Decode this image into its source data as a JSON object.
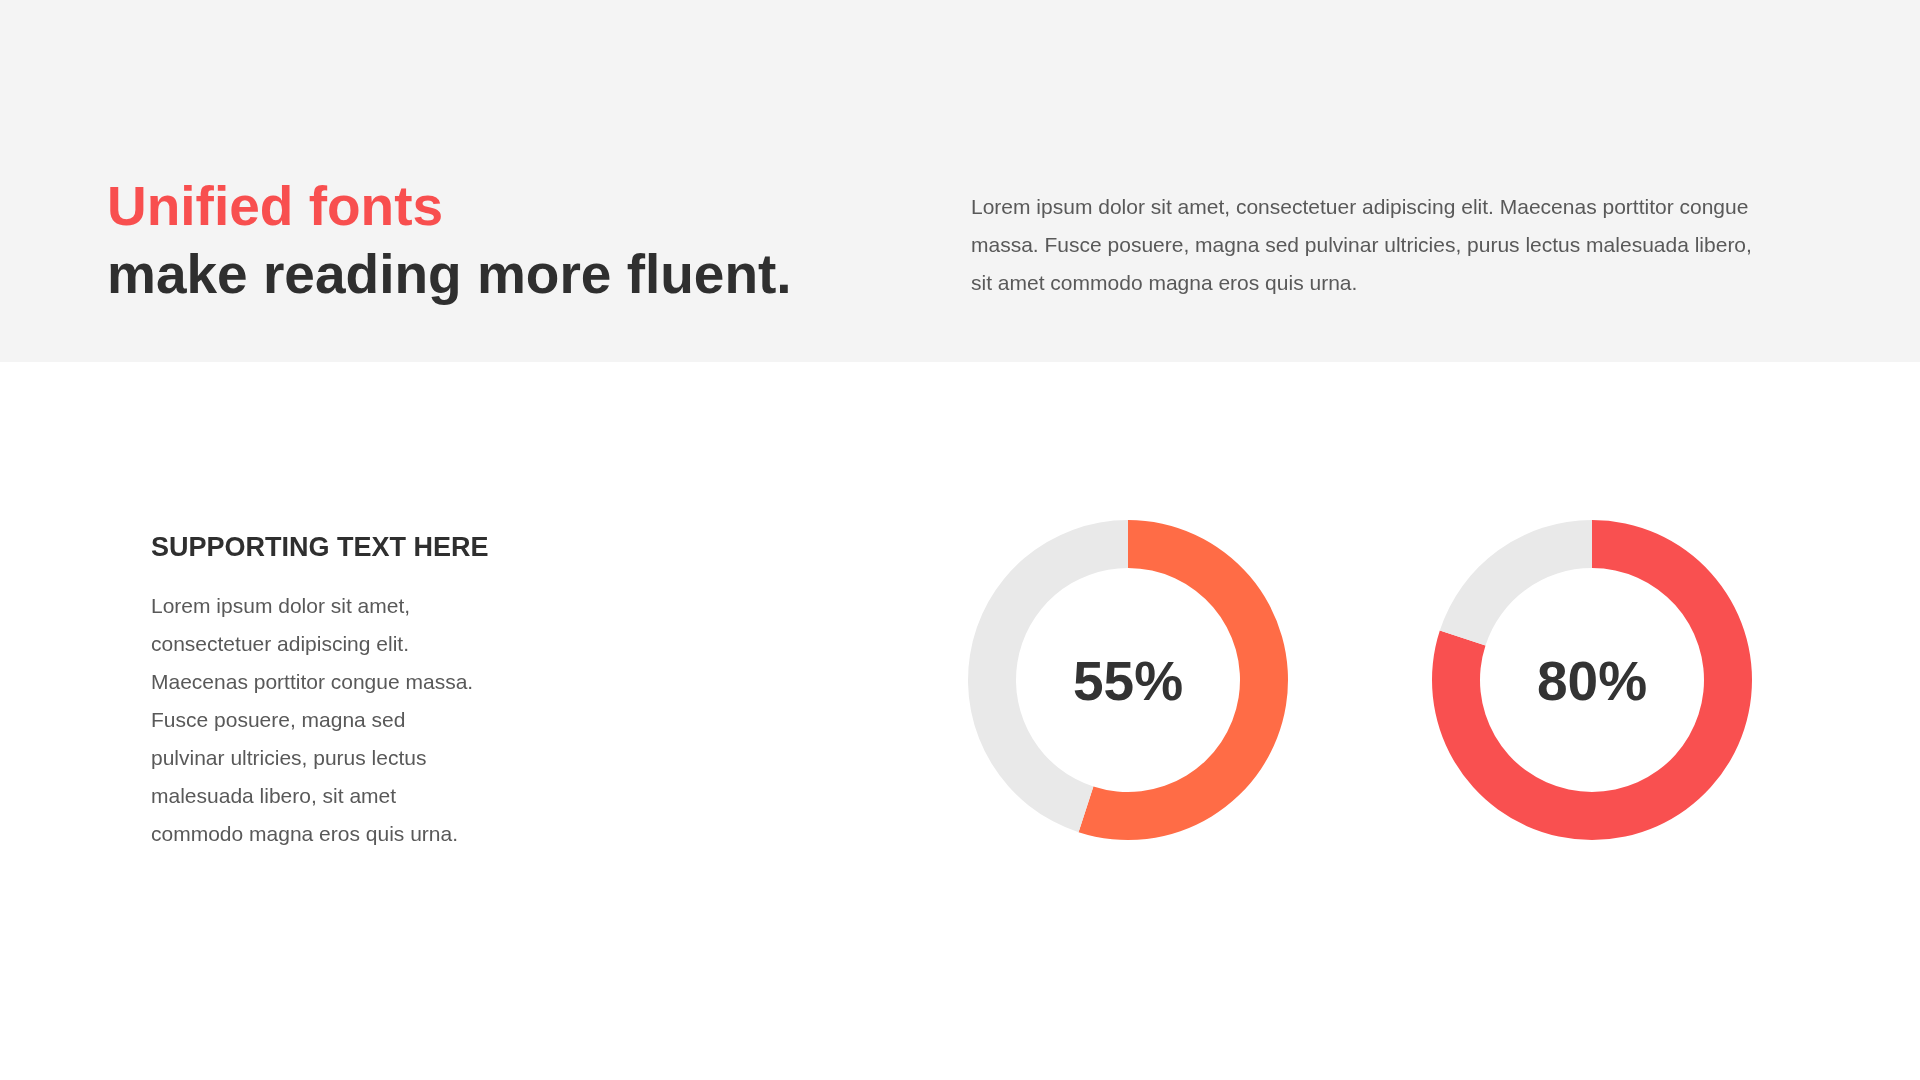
{
  "chart_data": [
    {
      "type": "other",
      "title": "Unified fonts",
      "subtitle": "make reading more fluent.",
      "annotations": [
        "Lorem ipsum dolor sit amet, consectetuer adipiscing elit. Maecenas porttitor congue massa. Fusce posuere, magna sed pulvinar ultricies, purus lectus malesuada libero, sit amet commodo magna eros quis urna."
      ]
    },
    {
      "type": "other",
      "title": "SUPPORTING TEXT HERE",
      "annotations": [
        "Lorem ipsum dolor sit amet, consectetuer adipiscing elit. Maecenas porttitor congue massa. Fusce posuere, magna sed pulvinar ultricies, purus lectus malesuada libero, sit amet commodo magna eros quis urna."
      ]
    },
    {
      "type": "donut",
      "categories": [
        null,
        null
      ],
      "values": [
        55,
        45
      ],
      "colors": [
        "#ff6c46",
        "#e9e9e9"
      ],
      "value_labels": [
        "55%",
        null
      ]
    },
    {
      "type": "donut",
      "categories": [
        null,
        null
      ],
      "values": [
        80,
        20
      ],
      "colors": [
        "#f95050",
        "#e9e9e9"
      ],
      "value_labels": [
        "80%",
        null
      ]
    }
  ]
}
